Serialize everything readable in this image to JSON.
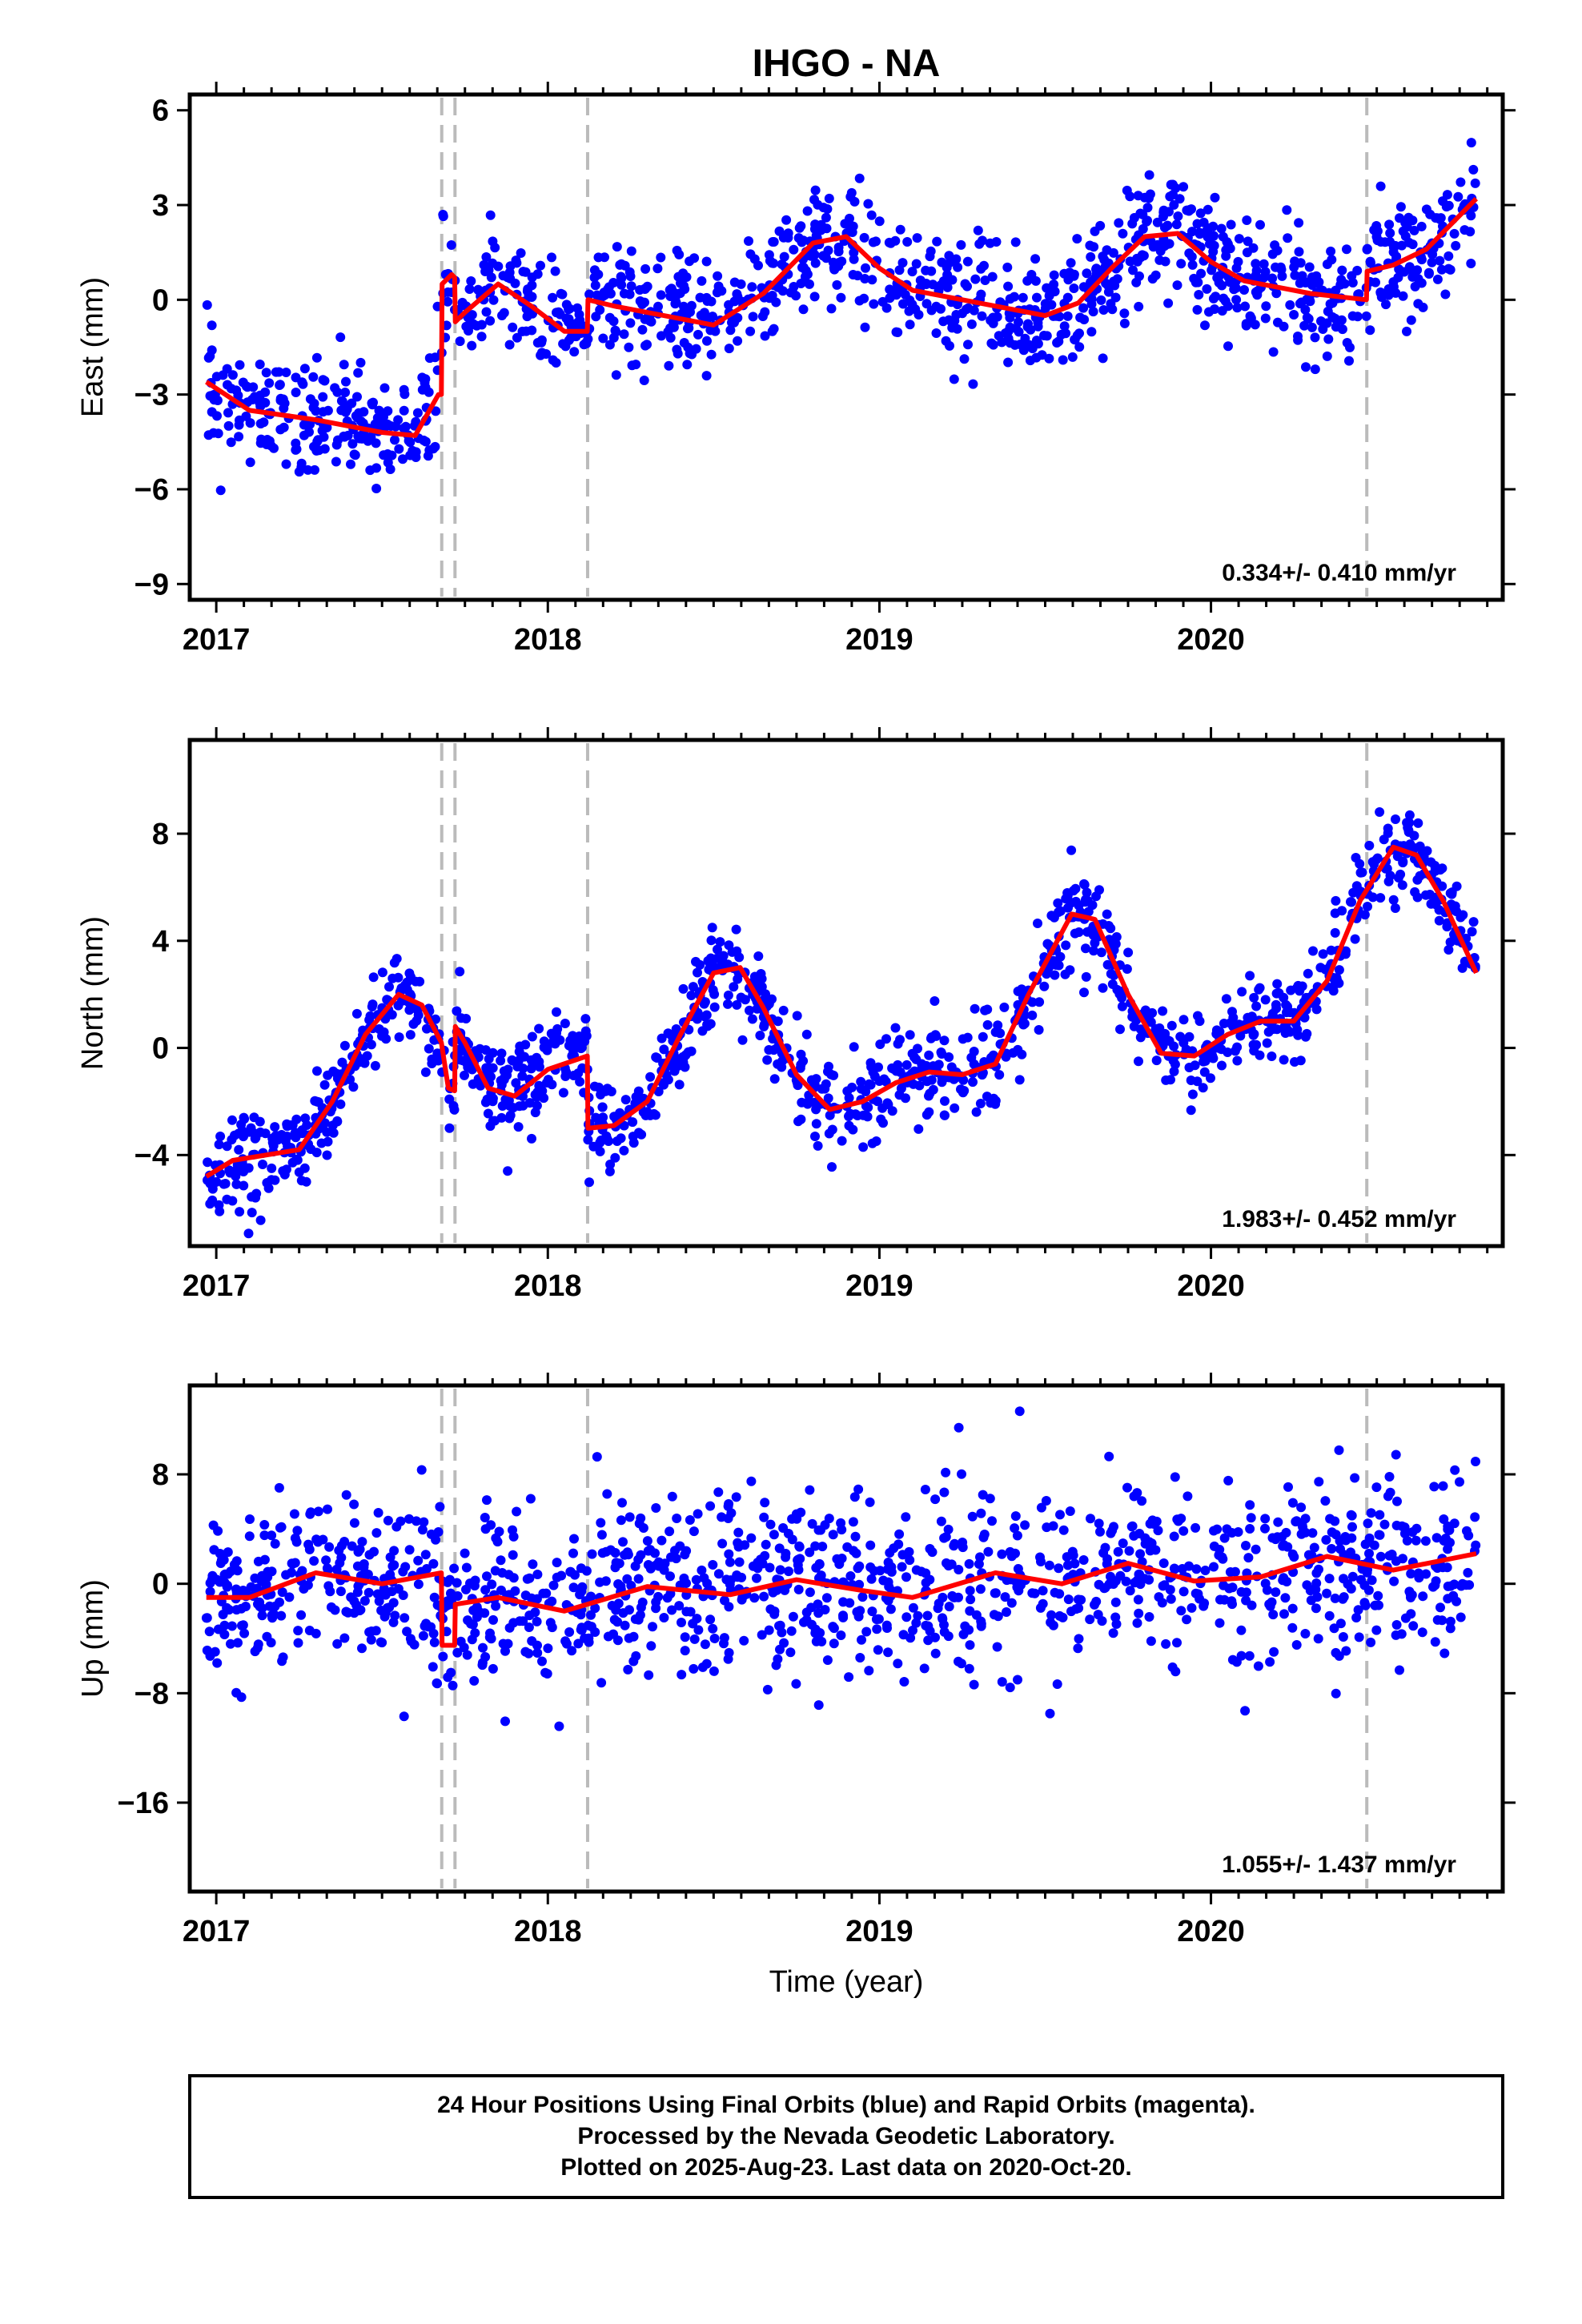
{
  "title": "IHGO - NA",
  "xlabel": "Time (year)",
  "footer": {
    "line1": "24 Hour Positions Using Final Orbits (blue) and Rapid Orbits (magenta).",
    "line2": "Processed by the Nevada Geodetic Laboratory.",
    "line3": "Plotted on 2025-Aug-23. Last data on 2020-Oct-20."
  },
  "colors": {
    "points": "#0000ff",
    "fit": "#ff0000",
    "event_lines": "#bbbbbb",
    "frame": "#000000"
  },
  "chart_data": [
    {
      "type": "scatter",
      "name": "east",
      "ylabel": "East (mm)",
      "rate_text": "0.334+/- 0.410 mm/yr",
      "xlim": [
        2016.92,
        2020.88
      ],
      "ylim": [
        -9.5,
        6.5
      ],
      "xticks": [
        2017,
        2018,
        2019,
        2020
      ],
      "yticks": [
        6,
        3,
        0,
        -3,
        -6,
        -9
      ],
      "ytick_labels": [
        "6",
        "3",
        "0",
        "−3",
        "−6",
        "−9"
      ],
      "event_lines": [
        2017.68,
        2017.72,
        2018.12,
        2020.47
      ],
      "series": [
        {
          "role": "daily positions (final orbits)",
          "x_start": 2016.97,
          "x_end": 2020.8,
          "n_points": 1300
        },
        {
          "role": "model fit",
          "x": [
            2016.97,
            2017.1,
            2017.3,
            2017.5,
            2017.6,
            2017.67,
            2017.679,
            2017.681,
            2017.71,
            2017.719,
            2017.721,
            2017.75,
            2017.85,
            2017.95,
            2018.05,
            2018.119,
            2018.121,
            2018.2,
            2018.35,
            2018.5,
            2018.65,
            2018.8,
            2018.9,
            2019.0,
            2019.1,
            2019.25,
            2019.4,
            2019.5,
            2019.6,
            2019.7,
            2019.8,
            2019.9,
            2020.0,
            2020.1,
            2020.2,
            2020.3,
            2020.469,
            2020.471,
            2020.55,
            2020.65,
            2020.8
          ],
          "y": [
            -2.6,
            -3.5,
            -3.8,
            -4.2,
            -4.3,
            -3.0,
            -3.0,
            0.5,
            0.8,
            0.7,
            -0.7,
            -0.4,
            0.5,
            -0.2,
            -1.0,
            -1.0,
            0.0,
            -0.2,
            -0.5,
            -0.8,
            0.2,
            1.8,
            2.0,
            1.0,
            0.3,
            0.0,
            -0.3,
            -0.5,
            -0.1,
            1.0,
            2.0,
            2.1,
            1.2,
            0.6,
            0.4,
            0.2,
            0.0,
            0.9,
            1.1,
            1.6,
            3.2
          ]
        }
      ]
    },
    {
      "type": "scatter",
      "name": "north",
      "ylabel": "North (mm)",
      "rate_text": "1.983+/- 0.452 mm/yr",
      "xlim": [
        2016.92,
        2020.88
      ],
      "ylim": [
        -7.4,
        11.5
      ],
      "xticks": [
        2017,
        2018,
        2019,
        2020
      ],
      "yticks": [
        8,
        4,
        0,
        -4
      ],
      "ytick_labels": [
        "8",
        "4",
        "0",
        "−4"
      ],
      "event_lines": [
        2017.68,
        2017.72,
        2018.12,
        2020.47
      ],
      "series": [
        {
          "role": "daily positions (final orbits)",
          "x_start": 2016.97,
          "x_end": 2020.8,
          "n_points": 1300
        },
        {
          "role": "model fit",
          "x": [
            2016.97,
            2017.05,
            2017.15,
            2017.25,
            2017.35,
            2017.45,
            2017.55,
            2017.62,
            2017.679,
            2017.7,
            2017.719,
            2017.721,
            2017.75,
            2017.82,
            2017.9,
            2018.0,
            2018.119,
            2018.121,
            2018.2,
            2018.3,
            2018.4,
            2018.5,
            2018.58,
            2018.65,
            2018.75,
            2018.85,
            2018.95,
            2019.05,
            2019.15,
            2019.25,
            2019.35,
            2019.45,
            2019.58,
            2019.65,
            2019.75,
            2019.85,
            2019.95,
            2020.05,
            2020.15,
            2020.25,
            2020.35,
            2020.45,
            2020.55,
            2020.62,
            2020.7,
            2020.8
          ],
          "y": [
            -4.8,
            -4.2,
            -4.0,
            -3.8,
            -2.0,
            0.5,
            2.0,
            1.6,
            0.2,
            -1.5,
            -1.6,
            0.8,
            0.2,
            -1.5,
            -1.8,
            -0.8,
            -0.3,
            -3.0,
            -2.9,
            -2.0,
            0.5,
            2.8,
            3.0,
            1.5,
            -1.0,
            -2.3,
            -2.0,
            -1.3,
            -0.9,
            -1.0,
            -0.6,
            2.0,
            5.0,
            4.8,
            2.0,
            -0.2,
            -0.3,
            0.5,
            1.0,
            1.0,
            2.5,
            5.5,
            7.5,
            7.2,
            5.5,
            2.8
          ]
        }
      ]
    },
    {
      "type": "scatter",
      "name": "up",
      "ylabel": "Up (mm)",
      "rate_text": "1.055+/- 1.437 mm/yr",
      "xlim": [
        2016.92,
        2020.88
      ],
      "ylim": [
        -22.5,
        14.5
      ],
      "xticks": [
        2017,
        2018,
        2019,
        2020
      ],
      "yticks": [
        8,
        0,
        -8,
        -16
      ],
      "ytick_labels": [
        "8",
        "0",
        "−8",
        "−16"
      ],
      "event_lines": [
        2017.68,
        2017.72,
        2018.12,
        2020.47
      ],
      "series": [
        {
          "role": "daily positions (final orbits)",
          "x_start": 2016.97,
          "x_end": 2020.8,
          "n_points": 1300
        },
        {
          "role": "model fit",
          "x": [
            2016.97,
            2017.1,
            2017.3,
            2017.5,
            2017.679,
            2017.681,
            2017.719,
            2017.721,
            2017.85,
            2018.05,
            2018.3,
            2018.55,
            2018.75,
            2018.95,
            2019.1,
            2019.35,
            2019.55,
            2019.75,
            2019.95,
            2020.15,
            2020.35,
            2020.55,
            2020.8
          ],
          "y": [
            -1.0,
            -1.0,
            0.8,
            0.0,
            0.8,
            -4.5,
            -4.5,
            -1.5,
            -1.0,
            -2.0,
            -0.2,
            -0.8,
            0.3,
            -0.5,
            -1.0,
            0.8,
            0.0,
            1.5,
            0.2,
            0.5,
            2.0,
            1.0,
            2.2
          ]
        }
      ]
    }
  ]
}
